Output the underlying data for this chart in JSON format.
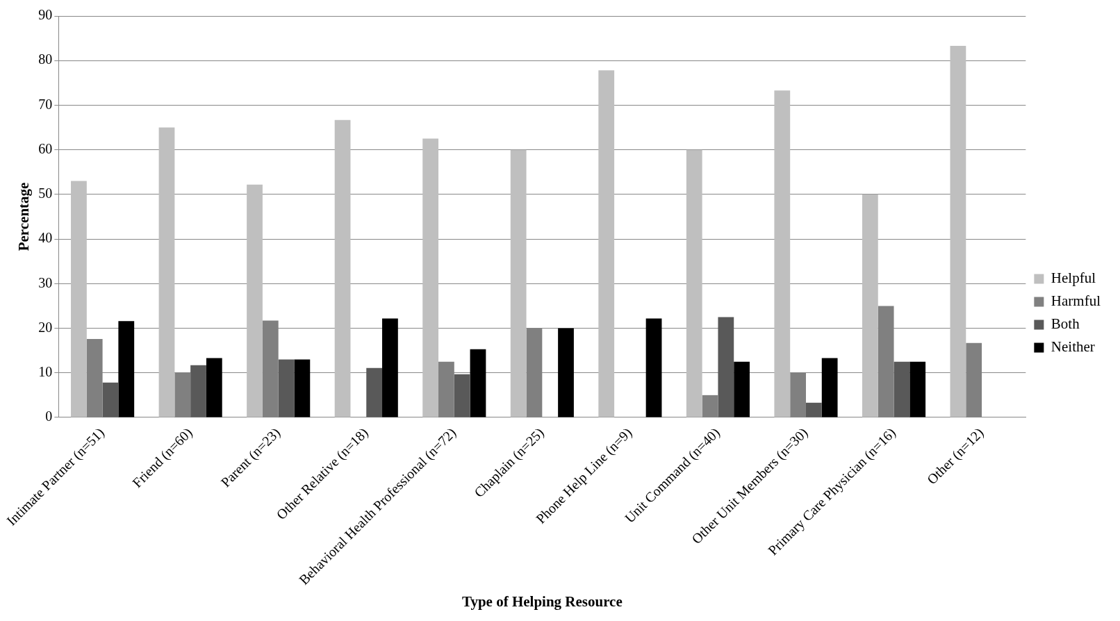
{
  "chart_data": {
    "type": "bar",
    "xlabel": "Type of Helping Resource",
    "ylabel": "Percentage",
    "categories": [
      "Intimate Partner (n=51)",
      "Friend (n=60)",
      "Parent (n=23)",
      "Other Relative (n=18)",
      "Behavioral Health Professional (n=72)",
      "Chaplain (n=25)",
      "Phone Help Line (n=9)",
      "Unit Command (n=40)",
      "Other Unit Members (n=30)",
      "Primary Care Physician (n=16)",
      "Other (n=12)"
    ],
    "series": [
      {
        "name": "Helpful",
        "color": "#bfbfbf",
        "values": [
          53,
          65,
          52.2,
          66.7,
          62.5,
          60,
          77.8,
          60,
          73.3,
          50,
          83.3
        ]
      },
      {
        "name": "Harmful",
        "color": "#808080",
        "values": [
          17.6,
          10,
          21.7,
          0,
          12.5,
          20,
          0,
          5,
          10,
          25,
          16.7
        ]
      },
      {
        "name": "Both",
        "color": "#595959",
        "values": [
          7.8,
          11.7,
          13,
          11.1,
          9.7,
          0,
          0,
          22.5,
          3.3,
          12.5,
          0
        ]
      },
      {
        "name": "Neither",
        "color": "#000000",
        "values": [
          21.6,
          13.3,
          13,
          22.2,
          15.3,
          20,
          22.2,
          12.5,
          13.3,
          12.5,
          0
        ]
      }
    ],
    "ylim": [
      0,
      90
    ],
    "yticks": [
      0,
      10,
      20,
      30,
      40,
      50,
      60,
      70,
      80,
      90
    ],
    "grid": "y",
    "legend": "right"
  }
}
